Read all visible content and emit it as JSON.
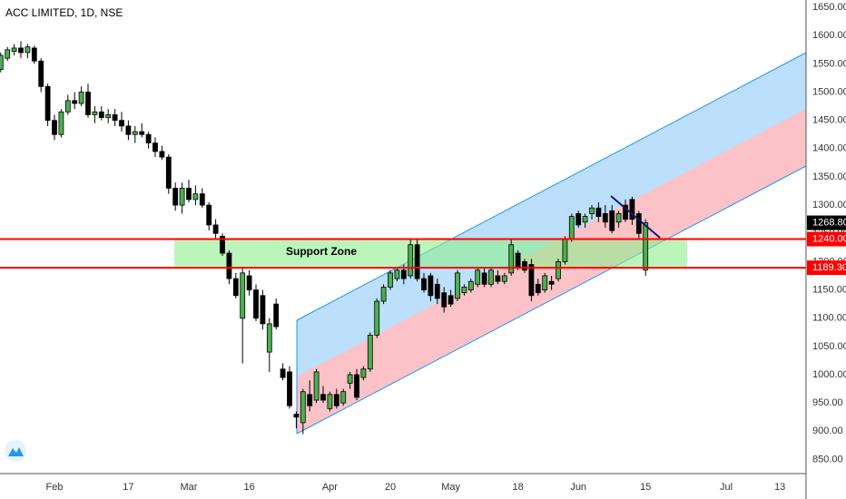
{
  "chart_data": {
    "type": "candlestick",
    "title": "ACC LIMITED, 1D, NSE",
    "categories": [
      null,
      null,
      null,
      null,
      null,
      null,
      null,
      null,
      "Feb",
      null,
      null,
      null,
      null,
      null,
      null,
      null,
      null,
      null,
      null,
      "17",
      null,
      null,
      null,
      null,
      null,
      null,
      null,
      null,
      "Mar",
      null,
      null,
      null,
      null,
      null,
      null,
      null,
      null,
      "16",
      null,
      null,
      null,
      null,
      null,
      null,
      null,
      null,
      null,
      null,
      null,
      "Apr",
      null,
      null,
      null,
      null,
      null,
      null,
      null,
      null,
      "20",
      null,
      null,
      null,
      null,
      null,
      null,
      null,
      null,
      "May",
      null,
      null,
      null,
      null,
      null,
      null,
      null,
      null,
      null,
      "18",
      null,
      null,
      null,
      null,
      null,
      null,
      null,
      null,
      "Jun",
      null,
      null,
      null,
      null,
      null,
      null,
      null,
      null,
      null,
      "15",
      null,
      null,
      null,
      null,
      null,
      null,
      null,
      null,
      null,
      null,
      null,
      "Jul",
      null,
      null,
      null,
      null,
      null,
      null,
      null,
      "13",
      null,
      null
    ],
    "open": [
      1540,
      1560,
      1572,
      1578,
      1570,
      1578,
      1555,
      1510,
      1450,
      1425,
      1465,
      1485,
      1480,
      1500,
      1460,
      1465,
      1455,
      1460,
      1450,
      1440,
      1425,
      1430,
      1425,
      1410,
      1395,
      1385,
      1330,
      1300,
      1330,
      1310,
      1320,
      1300,
      1265,
      1245,
      1215,
      1170,
      1100,
      1175,
      1150,
      1140,
      1040,
      1125,
      1010,
      1005,
      930,
      915,
      965,
      955,
      965,
      940,
      965,
      950,
      985,
      1000,
      995,
      1010,
      1070,
      1130,
      1155,
      1170,
      1185,
      1175,
      1230,
      1170,
      1175,
      1160,
      1145,
      1140,
      1135,
      1145,
      1150,
      1160,
      1180,
      1160,
      1175,
      1165,
      1180,
      1215,
      1200,
      1195,
      1160,
      1150,
      1165,
      1170,
      1200,
      1240,
      1285,
      1270,
      1285,
      1295,
      1285,
      1290,
      1270,
      1300,
      1310,
      1285,
      1185,
      null,
      null,
      null,
      null,
      null,
      null,
      null,
      null,
      null,
      null,
      null,
      null,
      null,
      null,
      null,
      null,
      null,
      null,
      null,
      null,
      null,
      null
    ],
    "high": [
      1570,
      1580,
      1585,
      1590,
      1585,
      1582,
      1560,
      1515,
      1460,
      1470,
      1495,
      1500,
      1510,
      1515,
      1475,
      1475,
      1470,
      1470,
      1465,
      1450,
      1440,
      1445,
      1430,
      1420,
      1405,
      1390,
      1340,
      1340,
      1345,
      1335,
      1330,
      1305,
      1275,
      1250,
      1220,
      1180,
      1190,
      1185,
      1160,
      1150,
      1100,
      1135,
      1020,
      1015,
      935,
      975,
      990,
      1010,
      980,
      970,
      975,
      975,
      1005,
      1010,
      1015,
      1075,
      1135,
      1160,
      1185,
      1190,
      1195,
      1240,
      1240,
      1180,
      1180,
      1170,
      1155,
      1150,
      1185,
      1160,
      1170,
      1190,
      1190,
      1190,
      1185,
      1180,
      1240,
      1220,
      1205,
      1205,
      1170,
      1180,
      1175,
      1205,
      1245,
      1285,
      1290,
      1285,
      1300,
      1305,
      1300,
      1300,
      1290,
      1310,
      1315,
      1290,
      1275,
      null,
      null,
      null,
      null,
      null,
      null,
      null,
      null,
      null,
      null,
      null,
      null,
      null,
      null,
      null,
      null,
      null,
      null,
      null,
      null,
      null,
      null
    ],
    "low": [
      1535,
      1555,
      1565,
      1560,
      1560,
      1550,
      1500,
      1440,
      1415,
      1420,
      1460,
      1470,
      1475,
      1455,
      1445,
      1450,
      1445,
      1440,
      1430,
      1415,
      1410,
      1420,
      1400,
      1385,
      1380,
      1320,
      1290,
      1285,
      1305,
      1300,
      1295,
      1255,
      1240,
      1210,
      1160,
      1135,
      1020,
      1140,
      1095,
      1080,
      1005,
      1080,
      990,
      940,
      905,
      895,
      935,
      950,
      950,
      935,
      940,
      945,
      975,
      955,
      990,
      1005,
      1065,
      1125,
      1150,
      1165,
      1160,
      1170,
      1165,
      1145,
      1130,
      1125,
      1110,
      1120,
      1130,
      1140,
      1145,
      1155,
      1155,
      1155,
      1160,
      1160,
      1175,
      1185,
      1180,
      1130,
      1140,
      1145,
      1150,
      1165,
      1195,
      1235,
      1260,
      1260,
      1275,
      1270,
      1260,
      1250,
      1260,
      1270,
      1265,
      1240,
      1175,
      null,
      null,
      null,
      null,
      null,
      null,
      null,
      null,
      null,
      null,
      null,
      null,
      null,
      null,
      null,
      null,
      null,
      null,
      null,
      null,
      null,
      null
    ],
    "close": [
      1565,
      1575,
      1578,
      1570,
      1580,
      1555,
      1510,
      1450,
      1425,
      1465,
      1485,
      1480,
      1500,
      1460,
      1465,
      1455,
      1460,
      1450,
      1440,
      1425,
      1430,
      1425,
      1410,
      1395,
      1385,
      1330,
      1300,
      1330,
      1310,
      1320,
      1300,
      1265,
      1250,
      1215,
      1170,
      1140,
      1180,
      1150,
      1100,
      1090,
      1090,
      1085,
      995,
      945,
      925,
      970,
      945,
      1005,
      955,
      965,
      945,
      970,
      1000,
      960,
      1010,
      1070,
      1130,
      1155,
      1180,
      1185,
      1170,
      1230,
      1170,
      1150,
      1140,
      1135,
      1120,
      1125,
      1180,
      1155,
      1165,
      1185,
      1160,
      1185,
      1165,
      1175,
      1230,
      1190,
      1185,
      1140,
      1145,
      1175,
      1160,
      1200,
      1240,
      1280,
      1265,
      1280,
      1295,
      1280,
      1270,
      1255,
      1285,
      1275,
      1275,
      1250,
      1268.8,
      null,
      null,
      null,
      null,
      null,
      null,
      null,
      null,
      null,
      null,
      null,
      null,
      null,
      null,
      null,
      null,
      null,
      null,
      null,
      null,
      null,
      null
    ],
    "up_color": "#4caf50",
    "down_color": "#000000",
    "ylim": [
      825,
      1663
    ],
    "yticks": [
      {
        "value": 850,
        "label": "850.00"
      },
      {
        "value": 900,
        "label": "900.00"
      },
      {
        "value": 950,
        "label": "950.00"
      },
      {
        "value": 1000,
        "label": "1000.00"
      },
      {
        "value": 1050,
        "label": "1050.00"
      },
      {
        "value": 1100,
        "label": "1100.00"
      },
      {
        "value": 1150,
        "label": "1150.00"
      },
      {
        "value": 1200,
        "label": "1200.00"
      },
      {
        "value": 1250,
        "label": "1250.00"
      },
      {
        "value": 1300,
        "label": "1300.00"
      },
      {
        "value": 1350,
        "label": "1350.00"
      },
      {
        "value": 1400,
        "label": "1400.00"
      },
      {
        "value": 1450,
        "label": "1450.00"
      },
      {
        "value": 1500,
        "label": "1500.00"
      },
      {
        "value": 1550,
        "label": "1550.00"
      },
      {
        "value": 1600,
        "label": "1600.00"
      },
      {
        "value": 1650,
        "label": "1650.00"
      }
    ],
    "price_lines": [
      {
        "value": 1240,
        "label": "1240.00",
        "color": "#ff0000"
      },
      {
        "value": 1189.3,
        "label": "1189.30",
        "color": "#ff0000"
      }
    ],
    "last_price": {
      "value": 1268.8,
      "label": "1268.80"
    },
    "annotation": "Support Zone"
  }
}
